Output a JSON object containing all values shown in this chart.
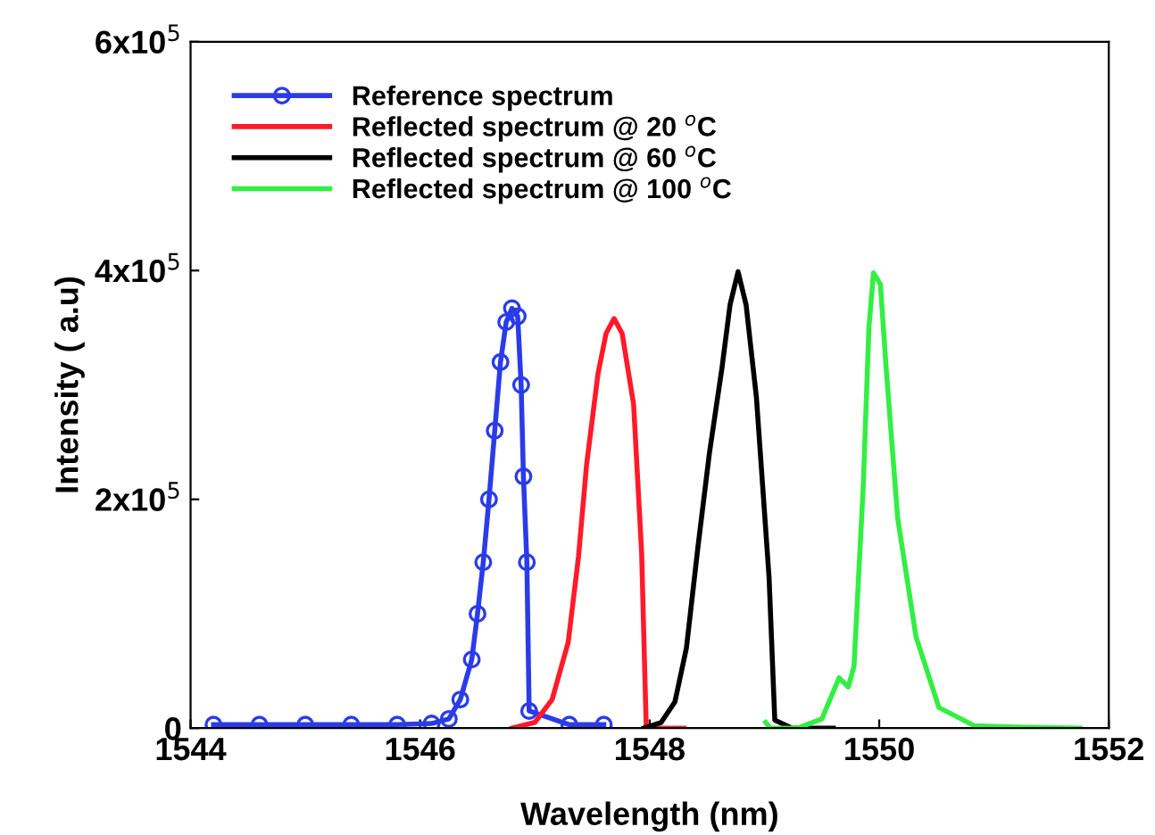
{
  "chart_data": {
    "type": "line",
    "xlabel": "Wavelength (nm)",
    "ylabel": "Intensity ( a.u)",
    "xlim": [
      1544,
      1552
    ],
    "xticks": [
      1544,
      1546,
      1548,
      1550,
      1552
    ],
    "ylim": [
      0,
      600000
    ],
    "yticks": [
      0,
      {
        "value": 200000,
        "label": "2x10$^{5}$"
      },
      {
        "value": 400000,
        "label": "4x10$^{5}$"
      },
      {
        "value": 600000,
        "label": "6x10$^{5}$"
      }
    ],
    "legend": "top left",
    "grid": false,
    "series": [
      {
        "name": "Reference spectrum",
        "color": "#2a3ce8",
        "marker": "circle",
        "x": [
          1544.2,
          1544.6,
          1545.0,
          1545.4,
          1545.8,
          1546.1,
          1546.25,
          1546.35,
          1546.45,
          1546.5,
          1546.55,
          1546.6,
          1546.65,
          1546.7,
          1546.75,
          1546.8,
          1546.85,
          1546.88,
          1546.9,
          1546.93,
          1546.95,
          1547.3,
          1547.6
        ],
        "values": [
          3000,
          3000,
          3000,
          3000,
          3000,
          4000,
          8000,
          25000,
          60000,
          100000,
          145000,
          200000,
          260000,
          320000,
          355000,
          367000,
          360000,
          300000,
          220000,
          145000,
          15000,
          3000,
          3000
        ]
      },
      {
        "name": "Reflected spectrum @ 20 $^{o}$C",
        "color": "#ff1a2a",
        "x": [
          1546.8,
          1547.0,
          1547.15,
          1547.29,
          1547.38,
          1547.45,
          1547.55,
          1547.62,
          1547.69,
          1547.76,
          1547.86,
          1547.93,
          1547.97,
          1548.1,
          1548.3
        ],
        "values": [
          0,
          5000,
          25000,
          75000,
          150000,
          230000,
          310000,
          345000,
          358000,
          345000,
          283000,
          153000,
          0,
          0,
          0
        ]
      },
      {
        "name": "Reflected spectrum @ 60 $^{o}$C",
        "color": "#000000",
        "x": [
          1547.95,
          1548.1,
          1548.22,
          1548.32,
          1548.42,
          1548.52,
          1548.63,
          1548.7,
          1548.77,
          1548.84,
          1548.93,
          1549.04,
          1549.09,
          1549.24,
          1549.6
        ],
        "values": [
          0,
          5000,
          23000,
          70000,
          158000,
          240000,
          315000,
          370000,
          399000,
          370000,
          289000,
          132000,
          7000,
          0,
          0
        ]
      },
      {
        "name": "Reflected spectrum @ 100 $^{o}$C",
        "color": "#33ee44",
        "x": [
          1549.01,
          1549.05,
          1549.29,
          1549.5,
          1549.65,
          1549.73,
          1549.78,
          1549.86,
          1549.91,
          1549.95,
          1550.01,
          1550.06,
          1550.16,
          1550.32,
          1550.52,
          1550.83,
          1551.2,
          1551.75
        ],
        "values": [
          5000,
          0,
          0,
          8000,
          44000,
          36000,
          54000,
          210000,
          350000,
          398000,
          388000,
          315000,
          184000,
          80000,
          18000,
          2000,
          1000,
          0
        ]
      }
    ]
  }
}
